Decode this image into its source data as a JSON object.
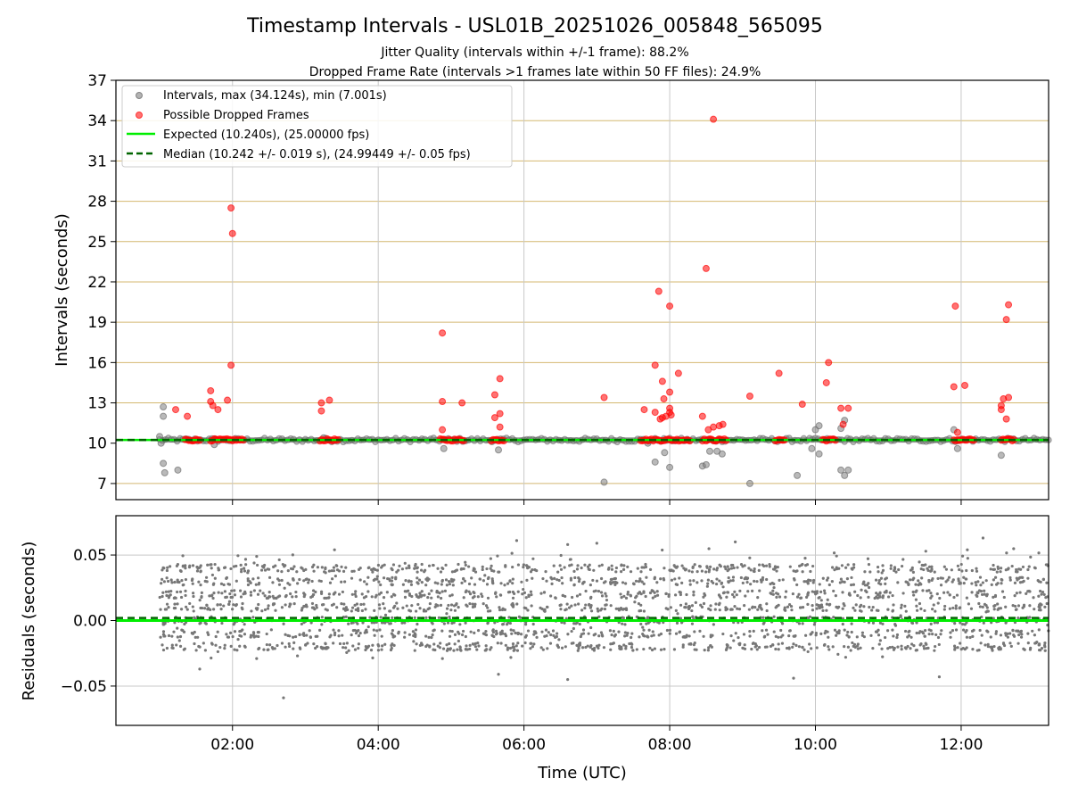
{
  "chart_data": {
    "type": "scatter",
    "title": "Timestamp Intervals - USL01B_20251026_005848_565095",
    "subtitle_lines": [
      "Jitter Quality (intervals within +/-1 frame): 88.2%",
      "Dropped Frame Rate (intervals >1 frames late within 50 FF files): 24.9%"
    ],
    "xlabel": "Time (UTC)",
    "x_range_hours": [
      0.4,
      13.2
    ],
    "x_ticks": [
      {
        "value": 2,
        "label": "02:00"
      },
      {
        "value": 4,
        "label": "04:00"
      },
      {
        "value": 6,
        "label": "06:00"
      },
      {
        "value": 8,
        "label": "08:00"
      },
      {
        "value": 10,
        "label": "10:00"
      },
      {
        "value": 12,
        "label": "12:00"
      }
    ],
    "top_panel": {
      "ylabel": "Intervals (seconds)",
      "ylim": [
        5.8,
        37
      ],
      "y_ticks": [
        {
          "value": 7,
          "label": "7"
        },
        {
          "value": 10,
          "label": "10"
        },
        {
          "value": 13,
          "label": "13"
        },
        {
          "value": 16,
          "label": "16"
        },
        {
          "value": 19,
          "label": "19"
        },
        {
          "value": 22,
          "label": "22"
        },
        {
          "value": 25,
          "label": "25"
        },
        {
          "value": 28,
          "label": "28"
        },
        {
          "value": 31,
          "label": "31"
        },
        {
          "value": 34,
          "label": "34"
        },
        {
          "value": 37,
          "label": "37"
        }
      ],
      "expected_value": 10.24,
      "median_value": 10.242,
      "normal_band": {
        "x_start": 1.0,
        "x_end": 13.2,
        "center": 10.24
      },
      "intervals": [
        [
          1.05,
          12.7
        ],
        [
          1.05,
          12.0
        ],
        [
          1.05,
          8.5
        ],
        [
          1.07,
          7.8
        ],
        [
          1.25,
          8.0
        ],
        [
          1.0,
          10.5
        ],
        [
          1.02,
          10.0
        ],
        [
          1.75,
          9.9
        ],
        [
          3.25,
          10.4
        ],
        [
          4.9,
          9.6
        ],
        [
          5.65,
          9.5
        ],
        [
          7.1,
          7.1
        ],
        [
          7.7,
          10.0
        ],
        [
          7.8,
          8.6
        ],
        [
          7.93,
          9.3
        ],
        [
          8.0,
          8.2
        ],
        [
          8.45,
          8.3
        ],
        [
          8.5,
          8.4
        ],
        [
          8.55,
          9.4
        ],
        [
          8.65,
          9.4
        ],
        [
          8.72,
          9.2
        ],
        [
          9.1,
          7.0
        ],
        [
          9.75,
          7.6
        ],
        [
          9.95,
          9.6
        ],
        [
          10.0,
          11.0
        ],
        [
          10.05,
          11.3
        ],
        [
          10.05,
          9.2
        ],
        [
          10.35,
          11.1
        ],
        [
          10.35,
          8.0
        ],
        [
          10.4,
          7.6
        ],
        [
          10.4,
          11.7
        ],
        [
          10.45,
          8.0
        ],
        [
          11.9,
          11.0
        ],
        [
          11.95,
          9.6
        ],
        [
          12.55,
          9.1
        ]
      ],
      "dropped_frames": [
        [
          1.22,
          12.5
        ],
        [
          1.38,
          12.0
        ],
        [
          1.7,
          13.9
        ],
        [
          1.7,
          13.1
        ],
        [
          1.73,
          12.8
        ],
        [
          1.8,
          12.5
        ],
        [
          1.93,
          13.2
        ],
        [
          1.98,
          27.5
        ],
        [
          2.0,
          25.6
        ],
        [
          1.98,
          15.8
        ],
        [
          3.22,
          13.0
        ],
        [
          3.22,
          12.4
        ],
        [
          3.33,
          13.2
        ],
        [
          4.88,
          18.2
        ],
        [
          4.88,
          13.1
        ],
        [
          4.88,
          11.0
        ],
        [
          5.15,
          13.0
        ],
        [
          5.6,
          13.6
        ],
        [
          5.6,
          11.9
        ],
        [
          5.67,
          12.2
        ],
        [
          5.67,
          14.8
        ],
        [
          5.67,
          11.2
        ],
        [
          7.1,
          13.4
        ],
        [
          7.65,
          12.5
        ],
        [
          7.8,
          15.8
        ],
        [
          7.8,
          12.3
        ],
        [
          7.85,
          21.3
        ],
        [
          7.87,
          11.8
        ],
        [
          7.9,
          14.6
        ],
        [
          7.92,
          13.3
        ],
        [
          7.9,
          11.9
        ],
        [
          7.95,
          12.0
        ],
        [
          8.0,
          20.2
        ],
        [
          8.0,
          12.6
        ],
        [
          8.0,
          12.3
        ],
        [
          8.0,
          13.8
        ],
        [
          8.02,
          12.1
        ],
        [
          8.12,
          15.2
        ],
        [
          8.45,
          12.0
        ],
        [
          8.5,
          23.0
        ],
        [
          8.53,
          11.0
        ],
        [
          8.6,
          34.1
        ],
        [
          8.6,
          11.2
        ],
        [
          8.68,
          11.3
        ],
        [
          8.73,
          11.4
        ],
        [
          9.1,
          13.5
        ],
        [
          9.5,
          15.2
        ],
        [
          9.82,
          12.9
        ],
        [
          10.15,
          14.5
        ],
        [
          10.18,
          16.0
        ],
        [
          10.35,
          12.6
        ],
        [
          10.45,
          12.6
        ],
        [
          10.38,
          11.4
        ],
        [
          11.92,
          20.2
        ],
        [
          11.9,
          14.2
        ],
        [
          11.95,
          10.8
        ],
        [
          12.05,
          14.3
        ],
        [
          12.55,
          12.8
        ],
        [
          12.55,
          12.5
        ],
        [
          12.58,
          13.3
        ],
        [
          12.62,
          11.8
        ],
        [
          12.62,
          19.2
        ],
        [
          12.65,
          20.3
        ],
        [
          12.65,
          13.4
        ]
      ],
      "dropped_band_segments": [
        [
          1.35,
          1.55
        ],
        [
          1.7,
          2.15
        ],
        [
          3.2,
          3.45
        ],
        [
          4.85,
          5.2
        ],
        [
          5.55,
          5.75
        ],
        [
          7.6,
          8.3
        ],
        [
          8.45,
          8.8
        ],
        [
          9.45,
          9.6
        ],
        [
          10.1,
          10.3
        ],
        [
          11.9,
          12.2
        ],
        [
          12.55,
          12.75
        ]
      ],
      "legend": [
        "Intervals, max (34.124s), min (7.001s)",
        "Possible Dropped Frames",
        "Expected (10.240s), (25.00000 fps)",
        "Median (10.242 +/- 0.019 s), (24.99449 +/- 0.05 fps)"
      ],
      "legend_location": "upper-left"
    },
    "bottom_panel": {
      "ylabel": "Residuals (seconds)",
      "ylim": [
        -0.08,
        0.08
      ],
      "y_ticks": [
        {
          "value": -0.05,
          "label": "−0.05"
        },
        {
          "value": 0.0,
          "label": "0.00"
        },
        {
          "value": 0.05,
          "label": "0.05"
        }
      ],
      "expected_residual": 0.0,
      "median_residual": 0.002,
      "residual_x_range": [
        1.0,
        13.2
      ],
      "residual_levels": [
        -0.02,
        -0.01,
        0.0,
        0.01,
        0.02,
        0.03,
        0.04
      ],
      "residual_outliers": [
        [
          2.7,
          -0.059
        ],
        [
          1.55,
          -0.037
        ],
        [
          3.4,
          0.054
        ],
        [
          5.9,
          0.061
        ],
        [
          6.6,
          0.058
        ],
        [
          7.0,
          0.059
        ],
        [
          8.9,
          0.06
        ],
        [
          12.3,
          0.063
        ],
        [
          6.6,
          -0.045
        ],
        [
          9.7,
          -0.044
        ],
        [
          11.7,
          -0.043
        ],
        [
          5.65,
          -0.041
        ]
      ]
    }
  }
}
